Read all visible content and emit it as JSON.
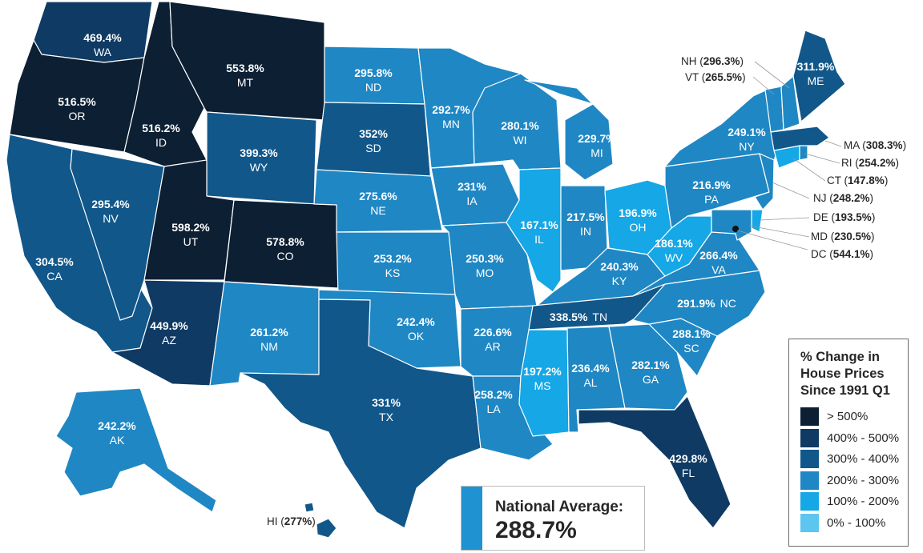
{
  "colors": {
    "gt500": "#0c1f33",
    "c400_500": "#0f3a63",
    "c300_400": "#11578a",
    "c200_300": "#1f87c4",
    "c100_200": "#15a7e6",
    "c0_100": "#5cc6ef"
  },
  "legend": {
    "title_lines": [
      "% Change in",
      "House Prices",
      "Since 1991 Q1"
    ],
    "items": [
      {
        "label": "> 500%",
        "color_key": "gt500"
      },
      {
        "label": "400% - 500%",
        "color_key": "c400_500"
      },
      {
        "label": "300% - 400%",
        "color_key": "c300_400"
      },
      {
        "label": "200% - 300%",
        "color_key": "c200_300"
      },
      {
        "label": "100% - 200%",
        "color_key": "c100_200"
      },
      {
        "label": "0% - 100%",
        "color_key": "c0_100"
      }
    ]
  },
  "national": {
    "label": "National Average:",
    "value": "288.7%"
  },
  "states": {
    "WA": {
      "value": "469.4%",
      "name": "WA"
    },
    "OR": {
      "value": "516.5%",
      "name": "OR"
    },
    "CA": {
      "value": "304.5%",
      "name": "CA"
    },
    "NV": {
      "value": "295.4%",
      "name": "NV"
    },
    "ID": {
      "value": "516.2%",
      "name": "ID"
    },
    "MT": {
      "value": "553.8%",
      "name": "MT"
    },
    "WY": {
      "value": "399.3%",
      "name": "WY"
    },
    "UT": {
      "value": "598.2%",
      "name": "UT"
    },
    "CO": {
      "value": "578.8%",
      "name": "CO"
    },
    "AZ": {
      "value": "449.9%",
      "name": "AZ"
    },
    "NM": {
      "value": "261.2%",
      "name": "NM"
    },
    "ND": {
      "value": "295.8%",
      "name": "ND"
    },
    "SD": {
      "value": "352%",
      "name": "SD"
    },
    "NE": {
      "value": "275.6%",
      "name": "NE"
    },
    "KS": {
      "value": "253.2%",
      "name": "KS"
    },
    "OK": {
      "value": "242.4%",
      "name": "OK"
    },
    "TX": {
      "value": "331%",
      "name": "TX"
    },
    "MN": {
      "value": "292.7%",
      "name": "MN"
    },
    "IA": {
      "value": "231%",
      "name": "IA"
    },
    "MO": {
      "value": "250.3%",
      "name": "MO"
    },
    "AR": {
      "value": "226.6%",
      "name": "AR"
    },
    "LA": {
      "value": "258.2%",
      "name": "LA"
    },
    "WI": {
      "value": "280.1%",
      "name": "WI"
    },
    "IL": {
      "value": "167.1%",
      "name": "IL"
    },
    "MI": {
      "value": "229.7%",
      "name": "MI"
    },
    "IN": {
      "value": "217.5%",
      "name": "IN"
    },
    "OH": {
      "value": "196.9%",
      "name": "OH"
    },
    "KY": {
      "value": "240.3%",
      "name": "KY"
    },
    "TN": {
      "value": "338.5%",
      "name": "TN"
    },
    "MS": {
      "value": "197.2%",
      "name": "MS"
    },
    "AL": {
      "value": "236.4%",
      "name": "AL"
    },
    "GA": {
      "value": "282.1%",
      "name": "GA"
    },
    "FL": {
      "value": "429.8%",
      "name": "FL"
    },
    "SC": {
      "value": "288.1%",
      "name": "SC"
    },
    "NC": {
      "value": "291.9%",
      "name": "NC"
    },
    "VA": {
      "value": "266.4%",
      "name": "VA"
    },
    "WV": {
      "value": "186.1%",
      "name": "WV"
    },
    "PA": {
      "value": "216.9%",
      "name": "PA"
    },
    "NY": {
      "value": "249.1%",
      "name": "NY"
    },
    "ME": {
      "value": "311.9%",
      "name": "ME"
    },
    "AK": {
      "value": "242.2%",
      "name": "AK"
    },
    "NH": {
      "value": "296.3%",
      "name": "NH"
    },
    "VT": {
      "value": "265.5%",
      "name": "VT"
    },
    "MA": {
      "value": "308.3%",
      "name": "MA"
    },
    "RI": {
      "value": "254.2%",
      "name": "RI"
    },
    "CT": {
      "value": "147.8%",
      "name": "CT"
    },
    "NJ": {
      "value": "248.2%",
      "name": "NJ"
    },
    "DE": {
      "value": "193.5%",
      "name": "DE"
    },
    "MD": {
      "value": "230.5%",
      "name": "MD"
    },
    "DC": {
      "value": "544.1%",
      "name": "DC"
    },
    "HI": {
      "value": "277%",
      "name": "HI"
    }
  }
}
